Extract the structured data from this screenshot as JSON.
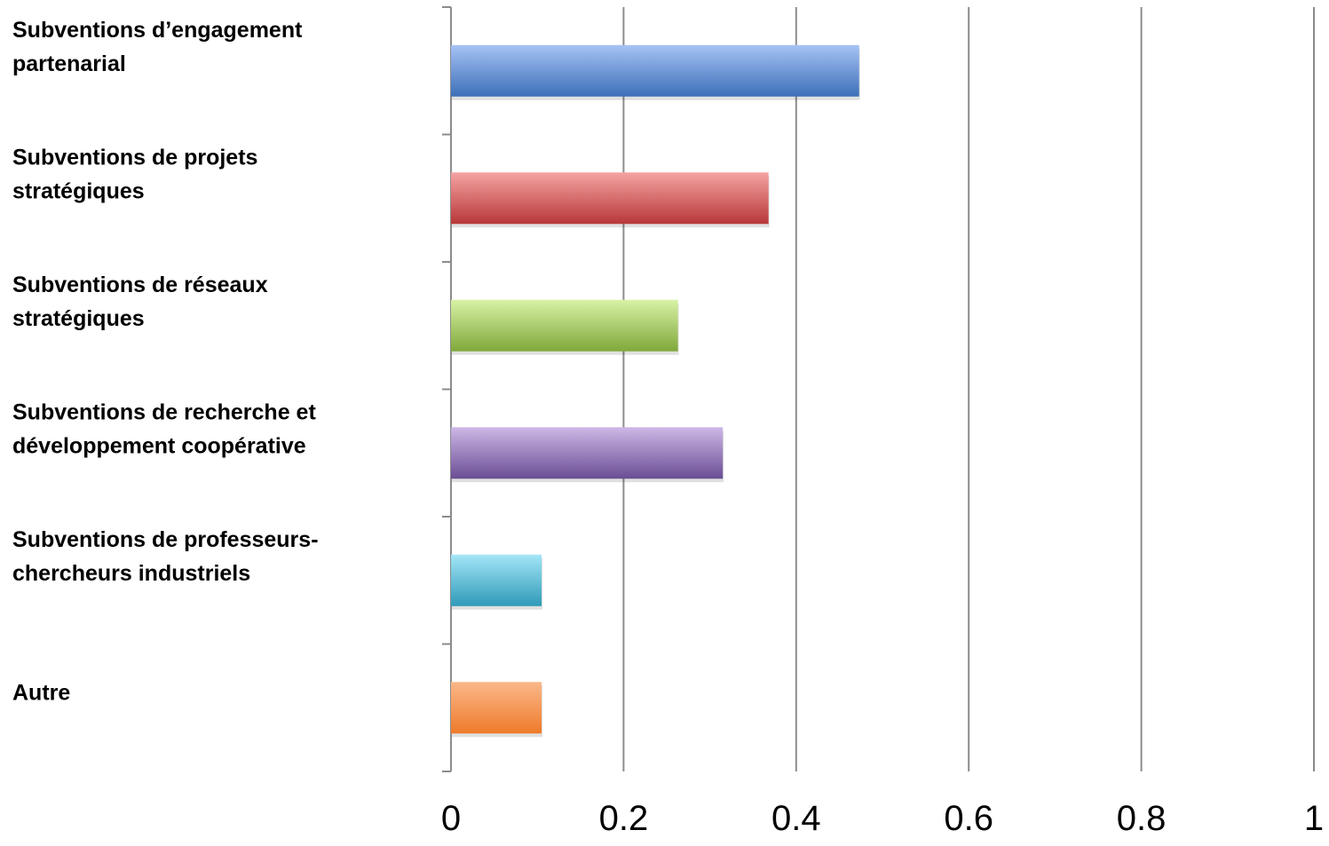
{
  "chart_data": {
    "type": "bar",
    "orientation": "horizontal",
    "title": "",
    "xlabel": "",
    "ylabel": "",
    "categories": [
      [
        "Subventions d’engagement",
        "partenarial"
      ],
      [
        "Subventions de projets",
        "stratégiques"
      ],
      [
        "Subventions de réseaux",
        "stratégiques"
      ],
      [
        "Subventions de recherche et",
        "développement coopérative"
      ],
      [
        "Subventions de professeurs-",
        "chercheurs industriels"
      ],
      [
        "Autre"
      ]
    ],
    "values": [
      0.473,
      0.368,
      0.263,
      0.315,
      0.105,
      0.105
    ],
    "colors": [
      [
        "#a6c3f5",
        "#3d6fb8"
      ],
      [
        "#f5a3a3",
        "#b83838"
      ],
      [
        "#d8f2a6",
        "#80a83a"
      ],
      [
        "#cdb8e6",
        "#6a4d94"
      ],
      [
        "#a3e6f7",
        "#2f9ab8"
      ],
      [
        "#fbb88a",
        "#ee7a2a"
      ]
    ],
    "xlim": [
      0,
      1
    ],
    "xticks": [
      "0",
      "0.2",
      "0.4",
      "0.6",
      "0.8",
      "1"
    ],
    "grid": true,
    "legend": "none"
  }
}
